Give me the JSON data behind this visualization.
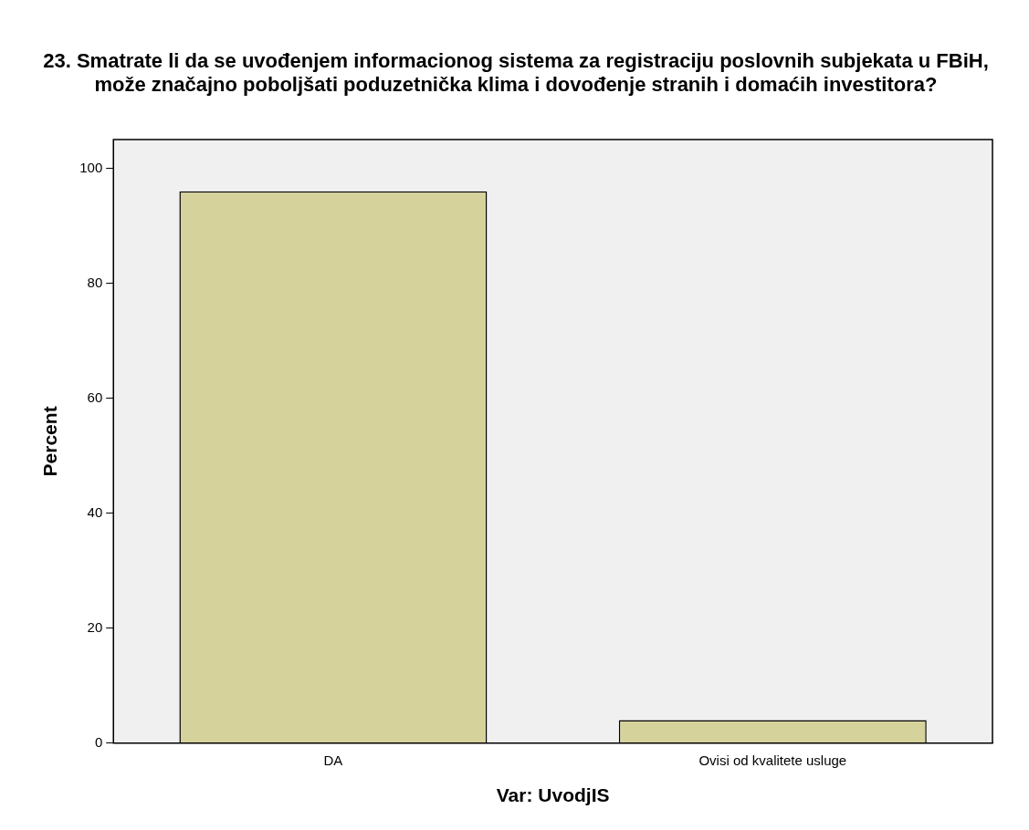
{
  "chart_data": {
    "type": "bar",
    "title": "23. Smatrate li da se uvođenjem informacionog sistema za registraciju poslovnih subjekata u FBiH, može značajno poboljšati poduzetnička klima i dovođenje stranih i domaćih investitora?",
    "xlabel": "Var: UvodjIS",
    "ylabel": "Percent",
    "categories": [
      "DA",
      "Ovisi od kvalitete usluge"
    ],
    "values": [
      96,
      4
    ],
    "color": "#d6d29c",
    "ylim": [
      0,
      105
    ],
    "yticks": [
      0,
      20,
      40,
      60,
      80,
      100
    ],
    "grid": false,
    "legend": false
  }
}
